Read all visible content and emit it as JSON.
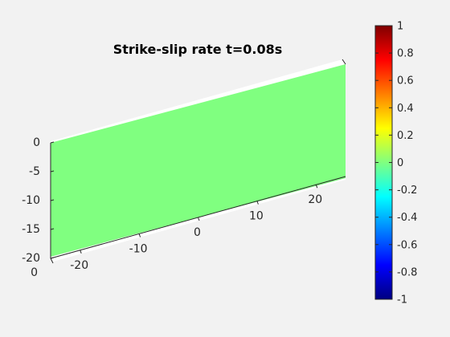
{
  "chart_data": {
    "type": "surface",
    "title": "Strike-slip rate t=0.08s",
    "surface": {
      "value": 0,
      "color": "#80ff80"
    },
    "axes": {
      "x": {
        "ticks": [
          -20,
          -10,
          0,
          10,
          20
        ],
        "range": [
          -25,
          25
        ]
      },
      "y": {
        "ticks": [
          0
        ],
        "range": [
          0,
          5
        ]
      },
      "z": {
        "ticks": [
          0,
          -5,
          -10,
          -15,
          -20
        ],
        "range": [
          -20,
          0
        ]
      }
    },
    "grid": false,
    "colorbar": {
      "colormap": "jet",
      "range": [
        -1,
        1
      ],
      "ticks": [
        "1",
        "0.8",
        "0.6",
        "0.4",
        "0.2",
        "0",
        "-0.2",
        "-0.4",
        "-0.6",
        "-0.8",
        "-1"
      ],
      "placement": "right"
    }
  }
}
